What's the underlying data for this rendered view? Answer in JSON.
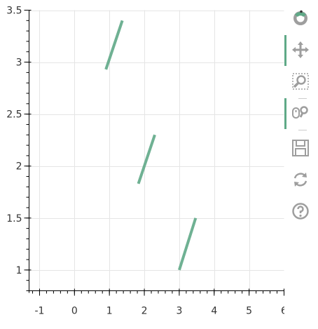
{
  "chart_data": {
    "type": "segment",
    "x_ticks": [
      "-1",
      "0",
      "1",
      "2",
      "3",
      "4",
      "5",
      "6"
    ],
    "y_ticks": [
      "1",
      "1.5",
      "2",
      "2.5",
      "3",
      "3.5"
    ],
    "xlim": [
      -1.3,
      6.0
    ],
    "ylim": [
      0.8,
      3.5
    ],
    "x_minor_step": 0.2,
    "y_minor_step": 0.1,
    "grid": true,
    "segment_color": "#5fa987",
    "segments": [
      {
        "x0": 0.9,
        "y0": 2.93,
        "x1": 1.37,
        "y1": 3.4
      },
      {
        "x0": 1.83,
        "y0": 1.83,
        "x1": 2.3,
        "y1": 2.3
      },
      {
        "x0": 3.0,
        "y0": 1.0,
        "x1": 3.47,
        "y1": 1.5
      }
    ]
  },
  "toolbar": {
    "tools": [
      {
        "name": "bokeh-logo",
        "icon": "bokeh-logo-icon",
        "active": false,
        "separator_after": false
      },
      {
        "name": "pan",
        "icon": "pan-icon",
        "active": true,
        "separator_after": false
      },
      {
        "name": "box-zoom",
        "icon": "box-zoom-icon",
        "active": false,
        "separator_after": true
      },
      {
        "name": "wheel-zoom",
        "icon": "wheel-zoom-icon",
        "active": true,
        "separator_after": true
      },
      {
        "name": "save",
        "icon": "save-icon",
        "active": false,
        "separator_after": false
      },
      {
        "name": "reset",
        "icon": "reset-icon",
        "active": false,
        "separator_after": false
      },
      {
        "name": "help",
        "icon": "help-icon",
        "active": false,
        "separator_after": false
      }
    ],
    "icon_color": "#9e9e9e",
    "active_color": "#5fa987"
  }
}
